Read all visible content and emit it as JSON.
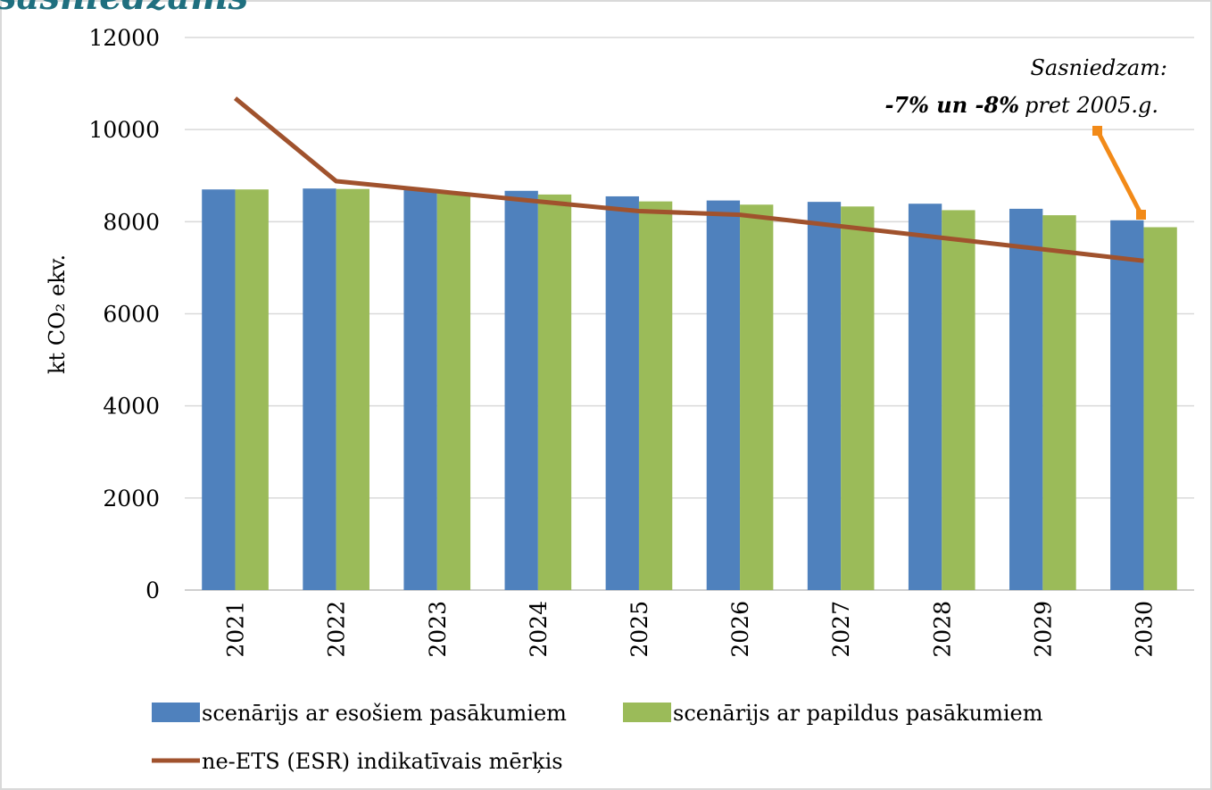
{
  "chart_data": {
    "type": "bar",
    "title": "sasniedzams",
    "y_label": "kt CO₂ ekv.",
    "categories": [
      "2021",
      "2022",
      "2023",
      "2024",
      "2025",
      "2026",
      "2027",
      "2028",
      "2029",
      "2030"
    ],
    "series": [
      {
        "name": "scenārijs ar esošiem pasākumiem",
        "color": "#4f81bd",
        "type": "bar",
        "values": [
          8700,
          8720,
          8690,
          8670,
          8550,
          8460,
          8430,
          8390,
          8280,
          8030
        ]
      },
      {
        "name": "scenārijs ar papildus pasākumiem",
        "color": "#9bbb59",
        "type": "bar",
        "values": [
          8700,
          8710,
          8620,
          8590,
          8440,
          8370,
          8330,
          8250,
          8140,
          7880
        ]
      },
      {
        "name": "ne-ETS (ESR) indikatīvais mērķis",
        "color": "#a0522d",
        "type": "line",
        "values": [
          10680,
          8880,
          8660,
          8440,
          8230,
          8150,
          7900,
          7650,
          7400,
          7150
        ]
      }
    ],
    "ylim": [
      0,
      12000
    ],
    "yticks": [
      0,
      2000,
      4000,
      6000,
      8000,
      10000,
      12000
    ],
    "grid": true,
    "legend": "bottom",
    "annotations": [
      "Sasniedzam:",
      "-7% un -8%",
      "pret 2005.g."
    ]
  }
}
